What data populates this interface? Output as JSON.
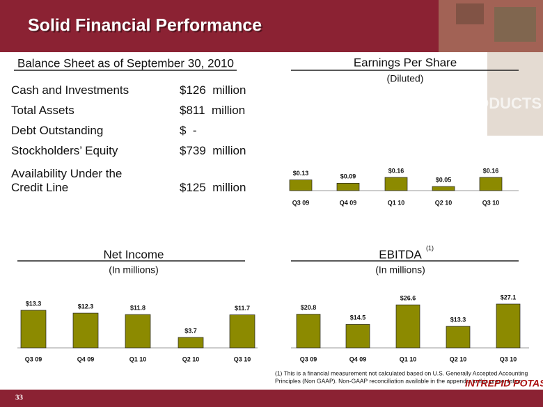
{
  "header": {
    "title": "Solid Financial Performance",
    "image_text": "PRODUCTS"
  },
  "balance_sheet": {
    "title": "Balance Sheet as of September 30, 2010",
    "rows": [
      [
        "Cash and Investments",
        "$126  million"
      ],
      [
        "Total Assets",
        "$811  million"
      ],
      [
        "Debt Outstanding",
        "$  -"
      ],
      [
        "Stockholders’ Equity",
        "$739  million"
      ],
      [
        "Availability Under the Credit Line",
        "$125  million"
      ]
    ]
  },
  "chart_data": [
    {
      "type": "bar",
      "title": "Earnings Per Share",
      "subtitle": "(Diluted)",
      "categories": [
        "Q3 09",
        "Q4 09",
        "Q1 10",
        "Q2 10",
        "Q3 10"
      ],
      "values": [
        0.13,
        0.09,
        0.16,
        0.05,
        0.16
      ],
      "value_labels": [
        "$0.13",
        "$0.09",
        "$0.16",
        "$0.05",
        "$0.16"
      ],
      "color": "#8c8a00"
    },
    {
      "type": "bar",
      "title": "Net Income",
      "subtitle": "(In millions)",
      "categories": [
        "Q3 09",
        "Q4 09",
        "Q1 10",
        "Q2 10",
        "Q3 10"
      ],
      "values": [
        13.3,
        12.3,
        11.8,
        3.7,
        11.7
      ],
      "value_labels": [
        "$13.3",
        "$12.3",
        "$11.8",
        "$3.7",
        "$11.7"
      ],
      "color": "#8c8a00"
    },
    {
      "type": "bar",
      "title": "EBITDA",
      "title_note": "(1)",
      "subtitle": "(In millions)",
      "categories": [
        "Q3 09",
        "Q4 09",
        "Q1 10",
        "Q2 10",
        "Q3 10"
      ],
      "values": [
        20.8,
        14.5,
        26.6,
        13.3,
        27.1
      ],
      "value_labels": [
        "$20.8",
        "$14.5",
        "$26.6",
        "$13.3",
        "$27.1"
      ],
      "color": "#8c8a00"
    }
  ],
  "footnote": [
    "(1)   This is a financial  measurement not calculated based on U.S. Generally Accepted Accounting",
    "Principles (Non GAAP).   Non-GAAP reconciliation available in the appendix to this presentation."
  ],
  "logo": "INTREPID POTASH",
  "page_number": "33"
}
